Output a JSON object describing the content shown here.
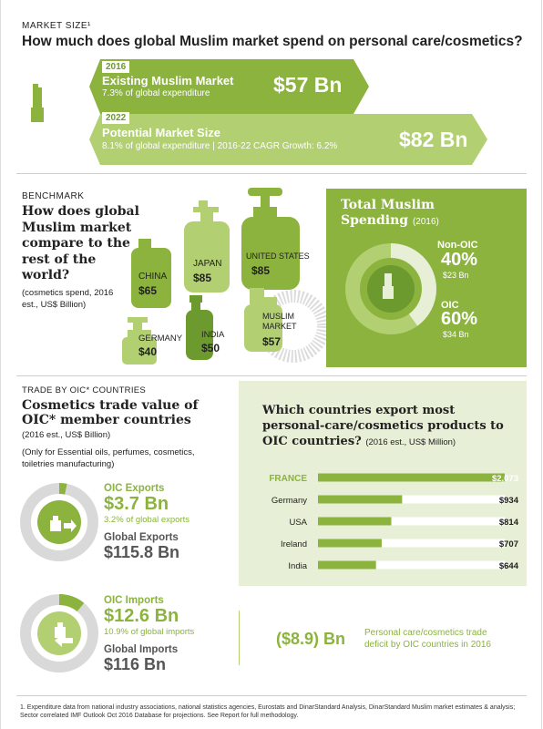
{
  "section1": {
    "kicker": "MARKET SIZE¹",
    "title": "How much does global Muslim market spend on personal care/cosmetics?",
    "rows": [
      {
        "year": "2016",
        "label": "Existing Muslim Market",
        "sub_pct": "7.3%",
        "sub_rest": " of global expenditure",
        "value": "$57 Bn"
      },
      {
        "year": "2022",
        "label": "Potential Market Size",
        "sub_pct": "8.1%",
        "sub_rest": " of global expenditure | 2016-22 CAGR Growth: 6.2%",
        "value": "$82 Bn"
      }
    ]
  },
  "section2": {
    "kicker": "BENCHMARK",
    "title": "How does global Muslim market compare to the rest of the world?",
    "note": "(cosmetics spend, 2016 est., US$ Billion)",
    "bottles": [
      {
        "name": "CHINA",
        "value": "$65"
      },
      {
        "name": "JAPAN",
        "value": "$85"
      },
      {
        "name": "UNITED STATES",
        "value": "$85"
      },
      {
        "name": "GERMANY",
        "value": "$40"
      },
      {
        "name": "INDIA",
        "value": "$50"
      },
      {
        "name": "MUSLIM MARKET",
        "value": "$57"
      }
    ],
    "spending": {
      "title": "Total Muslim Spending",
      "year": "(2016)",
      "nonoic_label": "Non-OIC",
      "nonoic_pct": "40%",
      "nonoic_value": "$23 Bn",
      "oic_label": "OIC",
      "oic_pct": "60%",
      "oic_value": "$34 Bn"
    }
  },
  "section3": {
    "kicker": "TRADE BY OIC* COUNTRIES",
    "title": "Cosmetics trade value of OIC* member countries",
    "note1": "(2016 est., US$ Billion)",
    "note2": "(Only for Essential oils, perfumes, cosmetics, toiletries manufacturing)",
    "exports": {
      "label": "OIC Exports",
      "value": "$3.7 Bn",
      "pct": "3.2% of global exports",
      "global_label": "Global Exports",
      "global_value": "$115.8 Bn"
    },
    "imports": {
      "label": "OIC Imports",
      "value": "$12.6 Bn",
      "pct": "10.9% of global imports",
      "global_label": "Global Imports",
      "global_value": "$116 Bn"
    },
    "deficit": {
      "value": "($8.9) Bn",
      "text": "Personal care/cosmetics trade deficit by OIC countries in 2016"
    }
  },
  "chart_data": {
    "type": "bar",
    "title": "Which countries export most personal-care/cosmetics products to OIC countries?",
    "note": "(2016 est., US$ Million)",
    "categories": [
      "FRANCE",
      "Germany",
      "USA",
      "Ireland",
      "India"
    ],
    "values": [
      2073,
      934,
      814,
      707,
      644
    ],
    "value_labels": [
      "$2,073",
      "$934",
      "$814",
      "$707",
      "$644"
    ],
    "orientation": "horizontal",
    "highlight": "FRANCE"
  },
  "footnote": "1. Expenditure data from national industry associations, national statistics agencies, Eurostats and DinarStandard Analysis, DinarStandard Muslim market estimates & analysis; Sector correlated IMF Outlook Oct 2016 Database for projections. See Report for full methodology.",
  "colors": {
    "green": "#8bb33e",
    "light_green": "#b2cf72",
    "pale_green": "#e7efd6",
    "dark_green": "#6d9a2f",
    "grey": "#d9d9d9"
  }
}
